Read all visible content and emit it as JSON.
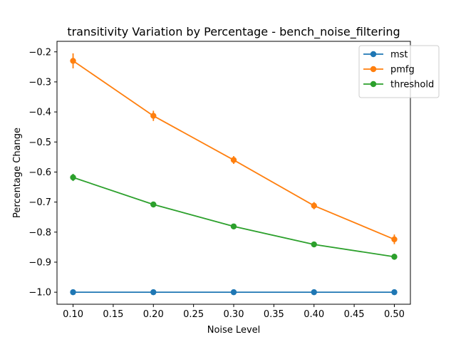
{
  "chart_data": {
    "type": "line",
    "title": "transitivity Variation by Percentage - bench_noise_filtering",
    "xlabel": "Noise Level",
    "ylabel": "Percentage Change",
    "xlim": [
      0.08,
      0.52
    ],
    "ylim": [
      -1.04,
      -0.165
    ],
    "x_ticks": [
      0.1,
      0.15,
      0.2,
      0.25,
      0.3,
      0.35,
      0.4,
      0.45,
      0.5
    ],
    "x_tick_labels": [
      "0.10",
      "0.15",
      "0.20",
      "0.25",
      "0.30",
      "0.35",
      "0.40",
      "0.45",
      "0.50"
    ],
    "y_ticks": [
      -0.2,
      -0.3,
      -0.4,
      -0.5,
      -0.6,
      -0.7,
      -0.8,
      -0.9,
      -1.0
    ],
    "y_tick_labels": [
      "−0.2",
      "−0.3",
      "−0.4",
      "−0.5",
      "−0.6",
      "−0.7",
      "−0.8",
      "−0.9",
      "−1.0"
    ],
    "x": [
      0.1,
      0.2,
      0.3,
      0.4,
      0.5
    ],
    "legend_position": "top-right",
    "grid": false,
    "series": [
      {
        "name": "mst",
        "color": "#1f77b4",
        "values": [
          -1.0,
          -1.0,
          -1.0,
          -1.0,
          -1.0
        ],
        "errors": [
          0.0,
          0.0,
          0.0,
          0.0,
          0.0
        ]
      },
      {
        "name": "pmfg",
        "color": "#ff7f0e",
        "values": [
          -0.23,
          -0.413,
          -0.56,
          -0.712,
          -0.824
        ],
        "errors": [
          0.025,
          0.017,
          0.013,
          0.012,
          0.016
        ]
      },
      {
        "name": "threshold",
        "color": "#2ca02c",
        "values": [
          -0.618,
          -0.708,
          -0.781,
          -0.841,
          -0.882
        ],
        "errors": [
          0.012,
          0.008,
          0.005,
          0.006,
          0.01
        ]
      }
    ]
  }
}
